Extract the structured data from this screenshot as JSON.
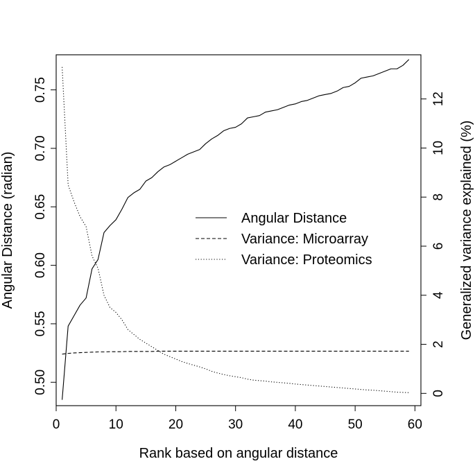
{
  "chart_data": {
    "type": "line",
    "title": "",
    "xlabel": "Rank based on angular distance",
    "ylabel_left": "Angular Distance (radian)",
    "ylabel_right": "Generalized variance explained (%)",
    "xlim": [
      0,
      61
    ],
    "ylim_left": [
      0.48,
      0.78
    ],
    "ylim_right": [
      -0.5,
      13.8
    ],
    "x_ticks": [
      0,
      10,
      20,
      30,
      40,
      50,
      60
    ],
    "x_tick_labels": [
      "0",
      "10",
      "20",
      "30",
      "40",
      "50",
      "60"
    ],
    "y_left_ticks": [
      0.5,
      0.55,
      0.6,
      0.65,
      0.7,
      0.75
    ],
    "y_left_tick_labels": [
      "0.50",
      "0.55",
      "0.60",
      "0.65",
      "0.70",
      "0.75"
    ],
    "y_right_ticks": [
      0,
      2,
      4,
      6,
      8,
      10,
      12
    ],
    "y_right_tick_labels": [
      "0",
      "2",
      "4",
      "6",
      "8",
      "10",
      "12"
    ],
    "grid": false,
    "legend_position": "center-right",
    "legend": [
      {
        "label": "Angular Distance",
        "linestyle": "solid"
      },
      {
        "label": "Variance: Microarray",
        "linestyle": "dashed"
      },
      {
        "label": "Variance: Proteomics",
        "linestyle": "dotted"
      }
    ],
    "x": [
      1,
      2,
      3,
      4,
      5,
      6,
      7,
      8,
      9,
      10,
      11,
      12,
      13,
      14,
      15,
      16,
      17,
      18,
      19,
      20,
      21,
      22,
      23,
      24,
      25,
      26,
      27,
      28,
      29,
      30,
      31,
      32,
      33,
      34,
      35,
      36,
      37,
      38,
      39,
      40,
      41,
      42,
      43,
      44,
      45,
      46,
      47,
      48,
      49,
      50,
      51,
      52,
      53,
      54,
      55,
      56,
      57,
      58,
      59
    ],
    "series": [
      {
        "name": "Angular Distance",
        "axis": "left",
        "linestyle": "solid",
        "values": [
          0.485,
          0.548,
          0.557,
          0.566,
          0.572,
          0.597,
          0.605,
          0.628,
          0.634,
          0.639,
          0.648,
          0.658,
          0.662,
          0.665,
          0.672,
          0.675,
          0.68,
          0.684,
          0.686,
          0.689,
          0.692,
          0.695,
          0.697,
          0.699,
          0.704,
          0.708,
          0.711,
          0.715,
          0.717,
          0.718,
          0.721,
          0.726,
          0.727,
          0.728,
          0.731,
          0.732,
          0.733,
          0.735,
          0.737,
          0.738,
          0.74,
          0.741,
          0.743,
          0.745,
          0.746,
          0.747,
          0.749,
          0.752,
          0.753,
          0.756,
          0.76,
          0.761,
          0.762,
          0.764,
          0.766,
          0.768,
          0.768,
          0.771,
          0.776
        ]
      },
      {
        "name": "Variance: Microarray",
        "axis": "right",
        "linestyle": "dashed",
        "values": [
          1.6,
          1.63,
          1.65,
          1.66,
          1.67,
          1.68,
          1.69,
          1.69,
          1.7,
          1.7,
          1.7,
          1.71,
          1.71,
          1.71,
          1.71,
          1.71,
          1.72,
          1.72,
          1.72,
          1.72,
          1.72,
          1.72,
          1.72,
          1.72,
          1.72,
          1.72,
          1.72,
          1.72,
          1.72,
          1.72,
          1.72,
          1.72,
          1.72,
          1.72,
          1.72,
          1.72,
          1.72,
          1.72,
          1.72,
          1.72,
          1.72,
          1.72,
          1.72,
          1.72,
          1.72,
          1.72,
          1.72,
          1.72,
          1.72,
          1.72,
          1.72,
          1.72,
          1.72,
          1.72,
          1.72,
          1.72,
          1.72,
          1.72,
          1.72
        ]
      },
      {
        "name": "Variance: Proteomics",
        "axis": "right",
        "linestyle": "dotted",
        "values": [
          13.3,
          8.5,
          7.8,
          7.2,
          6.8,
          5.6,
          5.1,
          4.0,
          3.5,
          3.3,
          3.0,
          2.6,
          2.4,
          2.2,
          2.05,
          1.9,
          1.75,
          1.6,
          1.5,
          1.4,
          1.3,
          1.22,
          1.15,
          1.08,
          1.0,
          0.9,
          0.83,
          0.77,
          0.72,
          0.68,
          0.64,
          0.58,
          0.54,
          0.52,
          0.5,
          0.47,
          0.45,
          0.43,
          0.41,
          0.38,
          0.36,
          0.34,
          0.32,
          0.3,
          0.28,
          0.26,
          0.24,
          0.22,
          0.2,
          0.18,
          0.16,
          0.14,
          0.13,
          0.11,
          0.09,
          0.07,
          0.05,
          0.04,
          0.03
        ]
      }
    ]
  }
}
